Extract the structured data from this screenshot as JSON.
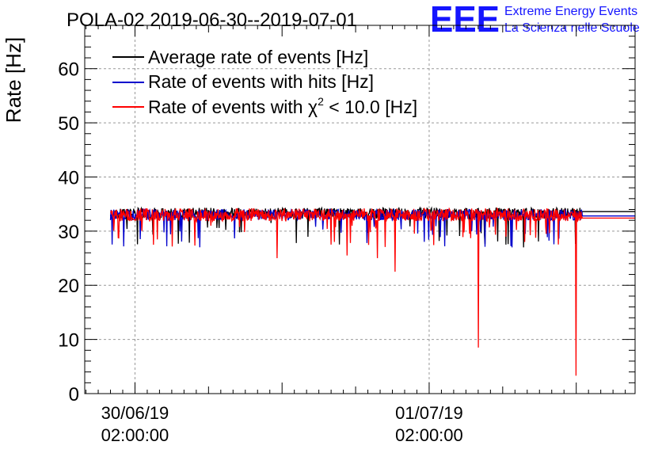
{
  "chart_data": {
    "type": "line",
    "title": "POLA-02 2019-06-30--2019-07-01",
    "xlabel": "",
    "ylabel": "Rate [Hz]",
    "ylim": [
      0,
      68
    ],
    "y_ticks": [
      0,
      10,
      20,
      30,
      40,
      50,
      60
    ],
    "x_range_hours": [
      -4.1,
      40.8
    ],
    "x_tick_labels": [
      {
        "hour": 0,
        "date": "30/06/19",
        "time": "02:00:00"
      },
      {
        "hour": 24,
        "date": "01/07/19",
        "time": "02:00:00"
      }
    ],
    "grid": true,
    "legend_position": "top-left",
    "legend": [
      {
        "label": "Average rate of events [Hz]",
        "color": "#000000"
      },
      {
        "label": "Rate of events with hits [Hz]",
        "color": "#0000cc"
      },
      {
        "label_prefix": "Rate of events with ",
        "label_symbol": "χ",
        "label_sup": "2",
        "label_suffix": " < 10.0 [Hz]",
        "color": "#ff0000"
      }
    ],
    "series": [
      {
        "name": "Average rate of events [Hz]",
        "color": "#000000",
        "x_start_hours": -2.0,
        "x_end_hours": 40.8,
        "baseline": 33.3,
        "noise": 1.0,
        "dips": [
          {
            "x": 11.1,
            "y": 31.5
          },
          {
            "x": 31.7,
            "y": 27.0
          },
          {
            "x": 37.0,
            "y": 29.5
          }
        ],
        "tail": {
          "from": 36.5,
          "to": 40.8,
          "y": 33.6
        }
      },
      {
        "name": "Rate of events with hits [Hz]",
        "color": "#0000cc",
        "x_start_hours": -2.0,
        "x_end_hours": 40.8,
        "baseline": 33.0,
        "noise": 1.0,
        "dips": [],
        "tail": {
          "from": 36.5,
          "to": 40.8,
          "y": 32.8
        }
      },
      {
        "name": "Rate of events with χ2 < 10.0 [Hz]",
        "color": "#ff0000",
        "x_start_hours": -2.0,
        "x_end_hours": 40.8,
        "baseline": 33.0,
        "noise": 1.2,
        "dips": [
          {
            "x": 11.6,
            "y": 25.0
          },
          {
            "x": 16.0,
            "y": 27.5
          },
          {
            "x": 17.3,
            "y": 25.5
          },
          {
            "x": 19.8,
            "y": 25.0
          },
          {
            "x": 21.2,
            "y": 22.5
          },
          {
            "x": 28.0,
            "y": 8.5
          },
          {
            "x": 31.8,
            "y": 28.0
          },
          {
            "x": 36.0,
            "y": 3.3
          }
        ],
        "tail": {
          "from": 36.5,
          "to": 40.8,
          "y": 32.4
        }
      }
    ]
  },
  "logo": {
    "mark": "EEE",
    "line1": "Extreme Energy Events",
    "line2": "La Scienza nelle Scuole",
    "color": "#1515ff"
  }
}
